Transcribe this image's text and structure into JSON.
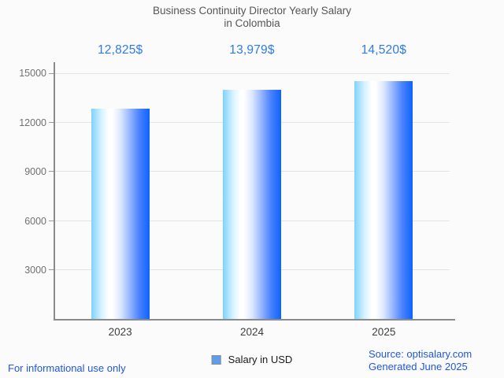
{
  "title": {
    "line1": "Business Continuity Director Yearly Salary",
    "line2": "in Colombia"
  },
  "chart_data": {
    "type": "bar",
    "title": "Business Continuity Director Yearly Salary in Colombia",
    "categories": [
      "2023",
      "2024",
      "2025"
    ],
    "values": [
      12825,
      13979,
      14520
    ],
    "value_labels": [
      "12,825$",
      "13,979$",
      "14,520$"
    ],
    "series": [
      {
        "name": "Salary in USD",
        "values": [
          12825,
          13979,
          14520
        ]
      }
    ],
    "xlabel": "",
    "ylabel": "",
    "ylim": [
      0,
      15000
    ],
    "yticks": [
      3000,
      6000,
      9000,
      12000,
      15000
    ],
    "ytick_labels": [
      "3000",
      "6000",
      "9000",
      "12000",
      "15000"
    ],
    "grid": true,
    "legend_position": "bottom",
    "bar_gradient": [
      "#7fd2fc",
      "#ffffff",
      "#0d63fd"
    ]
  },
  "legend": {
    "label": "Salary in USD",
    "swatch_color": "#5f9de8"
  },
  "footer": {
    "left": "For informational use only",
    "source": "Source: optisalary.com",
    "generated": "Generated June 2025"
  },
  "colors": {
    "annotation": "#2d7bea",
    "footer_link": "#2056e0",
    "title": "#565656",
    "axis": "#8a8a8a",
    "grid": "#e4e4e4",
    "ytick": "#707070",
    "xtick": "#3d3d3d",
    "legend_swatch": "#5f9de8"
  }
}
